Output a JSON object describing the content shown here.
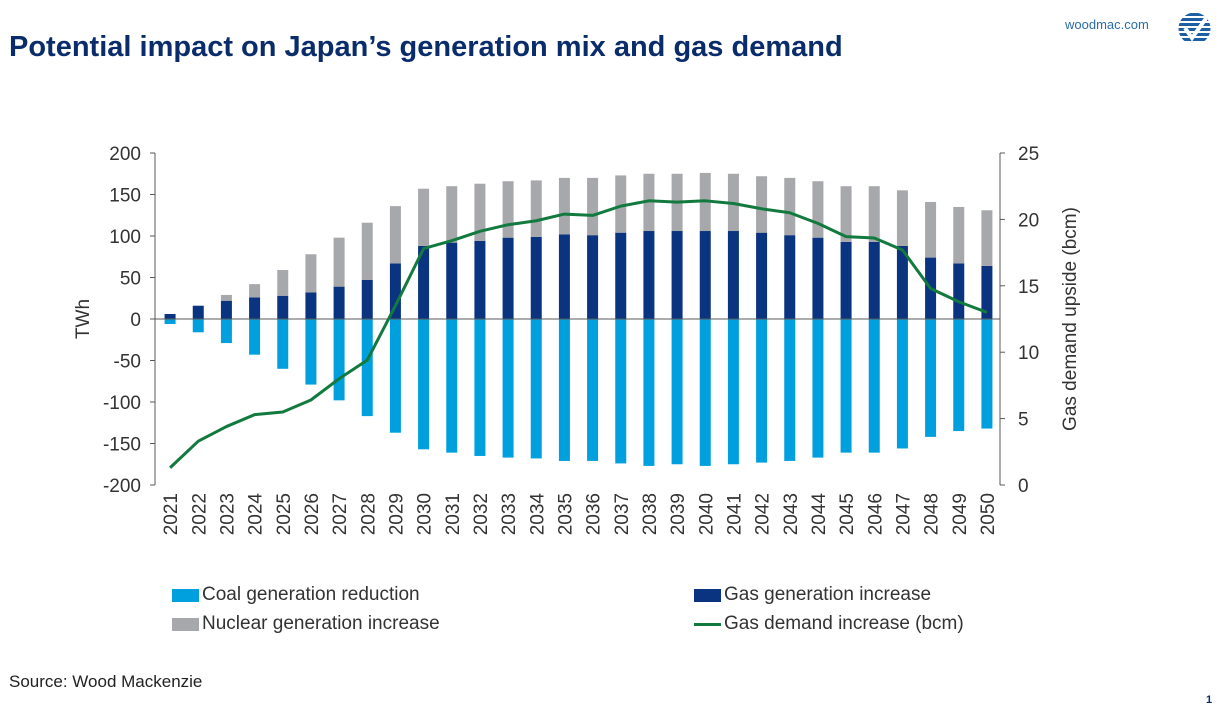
{
  "header": {
    "title": "Potential impact on Japan’s generation mix and gas demand",
    "site": "woodmac.com",
    "logo": "Wood Mackenzie"
  },
  "footer": {
    "source": "Source: Wood Mackenzie",
    "page": "1"
  },
  "chart_data": {
    "type": "bar",
    "stacked": true,
    "categories": [
      "2021",
      "2022",
      "2023",
      "2024",
      "2025",
      "2026",
      "2027",
      "2028",
      "2029",
      "2030",
      "2031",
      "2032",
      "2033",
      "2034",
      "2035",
      "2036",
      "2037",
      "2038",
      "2039",
      "2040",
      "2041",
      "2042",
      "2043",
      "2044",
      "2045",
      "2046",
      "2047",
      "2048",
      "2049",
      "2050"
    ],
    "ylabel": "TWh",
    "ylim": [
      -200,
      200
    ],
    "yticks": [
      "200",
      "150",
      "100",
      "50",
      "0",
      "-50",
      "-100",
      "-150",
      "-200"
    ],
    "y2label": "Gas demand  upside  (bcm)",
    "y2lim": [
      0,
      25
    ],
    "y2ticks": [
      "25",
      "20",
      "15",
      "10",
      "5",
      "0"
    ],
    "grid": false,
    "legend_placement": "bottom",
    "series": [
      {
        "name": "Coal generation reduction",
        "type": "bar",
        "axis": "left",
        "color": "#00a0df",
        "values": [
          -6,
          -16,
          -29,
          -43,
          -60,
          -79,
          -98,
          -117,
          -137,
          -157,
          -161,
          -165,
          -167,
          -168,
          -171,
          -171,
          -174,
          -177,
          -175,
          -177,
          -175,
          -173,
          -171,
          -167,
          -161,
          -161,
          -156,
          -142,
          -135,
          -132
        ]
      },
      {
        "name": "Gas generation increase",
        "type": "bar",
        "axis": "left",
        "color": "#0a3380",
        "values": [
          6,
          16,
          22,
          26,
          28,
          32,
          39,
          47,
          67,
          88,
          92,
          94,
          98,
          99,
          102,
          101,
          104,
          106,
          106,
          106,
          106,
          104,
          101,
          98,
          93,
          93,
          88,
          74,
          67,
          64
        ]
      },
      {
        "name": "Nuclear generation increase",
        "type": "bar",
        "axis": "left",
        "color": "#a7a8ac",
        "values": [
          0,
          0,
          7,
          16,
          31,
          46,
          59,
          69,
          69,
          69,
          68,
          69,
          68,
          68,
          68,
          69,
          69,
          69,
          69,
          70,
          69,
          68,
          69,
          68,
          67,
          67,
          67,
          67,
          68,
          67
        ]
      },
      {
        "name": "Gas demand increase (bcm)",
        "type": "line",
        "axis": "right",
        "color": "#127a3e",
        "values": [
          1.3,
          3.3,
          4.4,
          5.3,
          5.5,
          6.4,
          8.0,
          9.4,
          13.5,
          17.8,
          18.4,
          19.1,
          19.6,
          19.9,
          20.4,
          20.3,
          21.0,
          21.4,
          21.3,
          21.4,
          21.2,
          20.8,
          20.5,
          19.7,
          18.7,
          18.6,
          17.7,
          14.8,
          13.8,
          13.0
        ]
      }
    ]
  }
}
